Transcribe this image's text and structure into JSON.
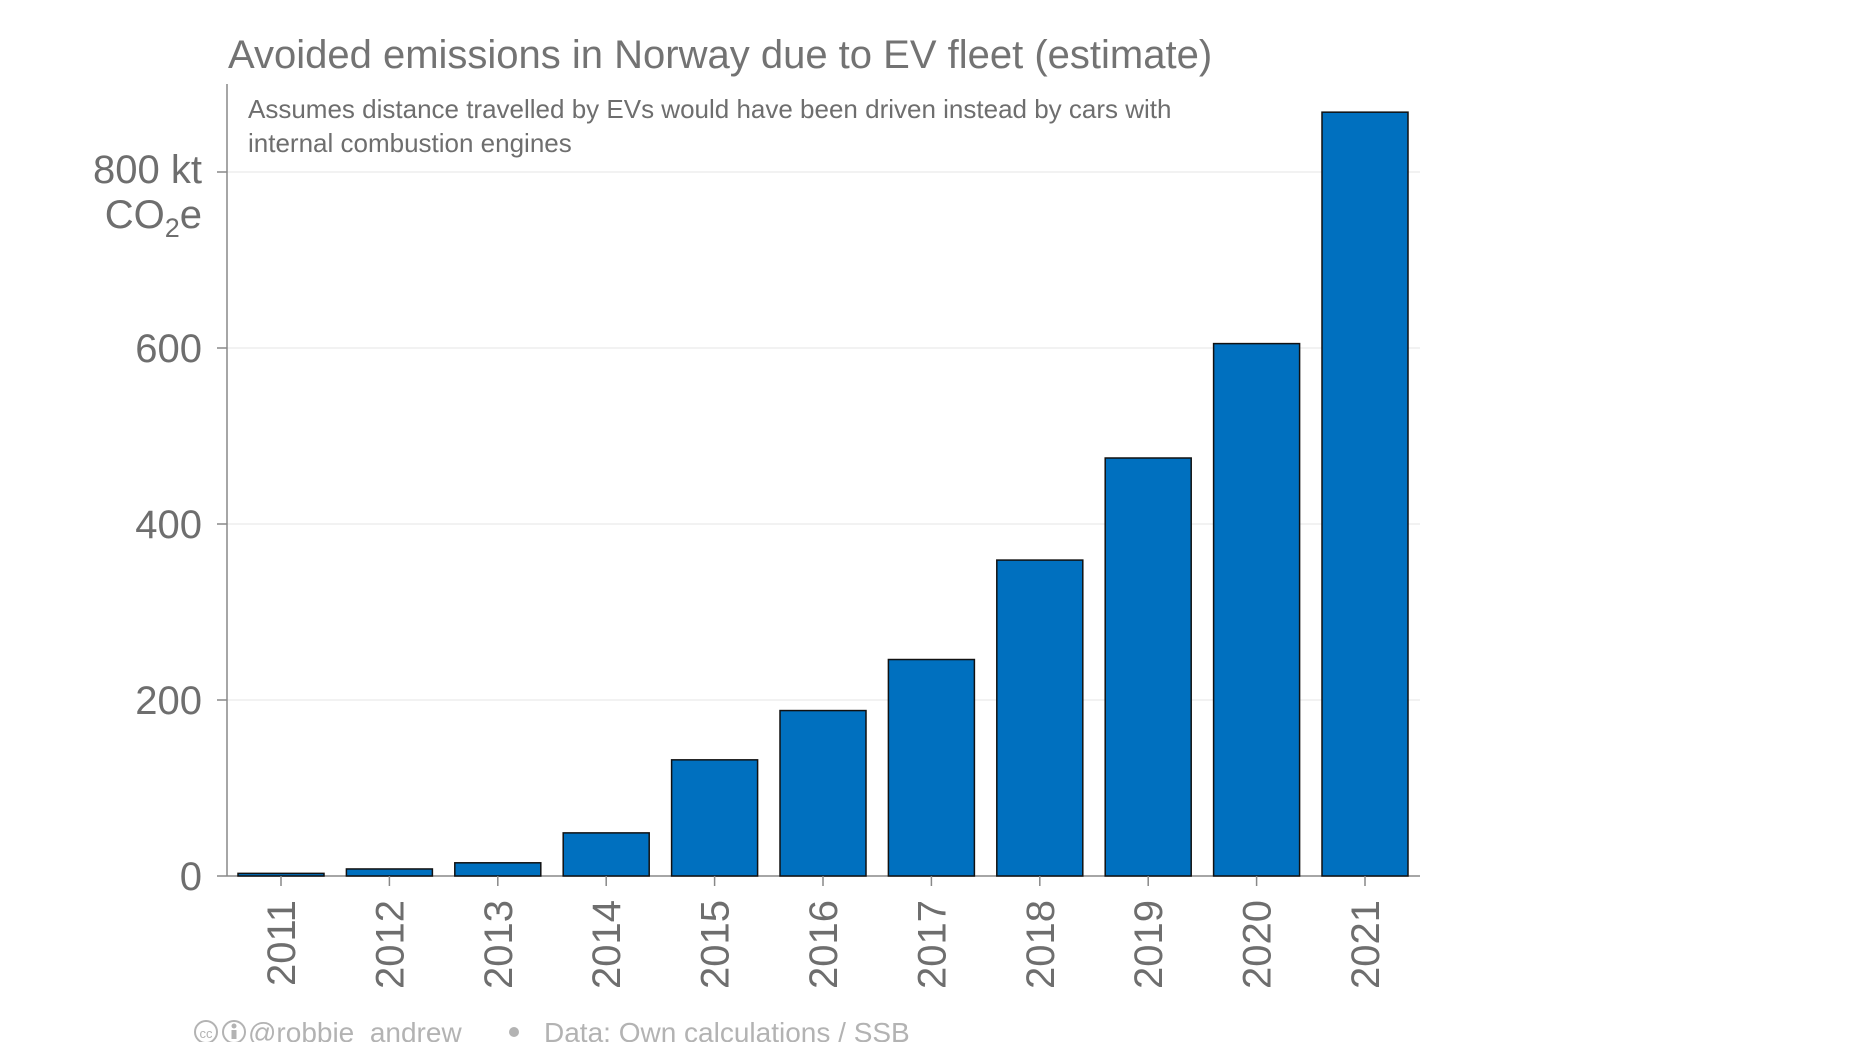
{
  "chart_data": {
    "type": "bar",
    "title": "Avoided emissions in Norway due to EV fleet (estimate)",
    "subtitle_lines": [
      "Assumes distance travelled by EVs would have been driven instead by cars with",
      "internal combustion engines"
    ],
    "ylabel_unit_line1": "800 kt",
    "ylabel_unit_co": "CO",
    "ylabel_unit_sub": "2",
    "ylabel_unit_e": "e",
    "yticks": [
      "0",
      "200",
      "400",
      "600"
    ],
    "ylim": [
      0,
      900
    ],
    "grid": true,
    "categories": [
      "2011",
      "2012",
      "2013",
      "2014",
      "2015",
      "2016",
      "2017",
      "2018",
      "2019",
      "2020",
      "2021"
    ],
    "values": [
      3,
      8,
      15,
      49,
      132,
      188,
      246,
      359,
      475,
      605,
      868
    ],
    "bar_color": "#0070BF",
    "footer_handle": "@robbie_andrew",
    "footer_source": "Data: Own calculations / SSB"
  }
}
